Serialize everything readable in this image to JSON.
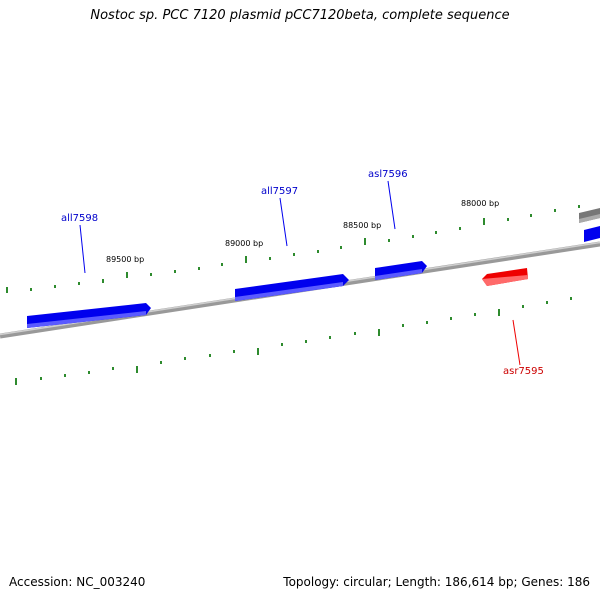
{
  "title": "Nostoc sp. PCC 7120 plasmid pCC7120beta, complete sequence",
  "footer": {
    "accession": "Accession: NC_003240",
    "summary": "Topology: circular; Length: 186,614 bp; Genes: 186"
  },
  "colors": {
    "forward_gene": "#0000ee",
    "reverse_gene": "#ee0000",
    "backbone": "#888888",
    "tick": "#2e8b2e",
    "edge_gene": "#777777"
  },
  "position_labels": [
    {
      "text": "89500 bp",
      "bp": 89500
    },
    {
      "text": "89000 bp",
      "bp": 89000
    },
    {
      "text": "88500 bp",
      "bp": 88500
    },
    {
      "text": "88000 bp",
      "bp": 88000
    }
  ],
  "genes": [
    {
      "name": "all7598",
      "strand": "forward",
      "labeled": true
    },
    {
      "name": "all7597",
      "strand": "forward",
      "labeled": true
    },
    {
      "name": "asl7596",
      "strand": "forward",
      "labeled": true
    },
    {
      "name": "asr7595",
      "strand": "reverse",
      "labeled": true
    },
    {
      "name": "",
      "strand": "forward",
      "labeled": false
    },
    {
      "name": "",
      "strand": "forward",
      "labeled": false
    }
  ]
}
